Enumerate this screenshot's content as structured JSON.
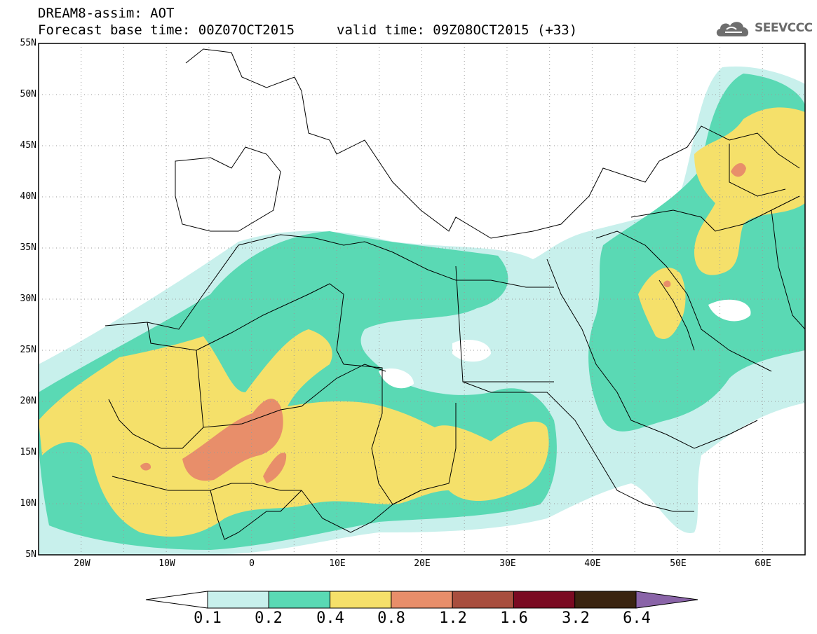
{
  "title": {
    "line1": "DREAM8-assim: AOT",
    "line2": "Forecast base time: 00Z07OCT2015",
    "line3": "valid time: 09Z08OCT2015 (+33)"
  },
  "logo": {
    "text": "SEEVCCC",
    "icon": "cloud-icon"
  },
  "map": {
    "lon_range": [
      -25,
      65
    ],
    "lat_range": [
      5,
      55
    ],
    "lat_labels": [
      "55N",
      "50N",
      "45N",
      "40N",
      "35N",
      "30N",
      "25N",
      "20N",
      "15N",
      "10N",
      "5N"
    ],
    "lon_labels": [
      "20W",
      "10W",
      "0",
      "10E",
      "20E",
      "30E",
      "40E",
      "50E",
      "60E"
    ],
    "grid": "dotted"
  },
  "colorbar": {
    "levels": [
      "0.1",
      "0.2",
      "0.4",
      "0.8",
      "1.2",
      "1.6",
      "3.2",
      "6.4"
    ],
    "colors": [
      "#ffffff",
      "#c8f0ec",
      "#5ad9b4",
      "#f5e06a",
      "#e88e6a",
      "#a84e3e",
      "#7a0a22",
      "#3a2410",
      "#8a64a8"
    ]
  }
}
